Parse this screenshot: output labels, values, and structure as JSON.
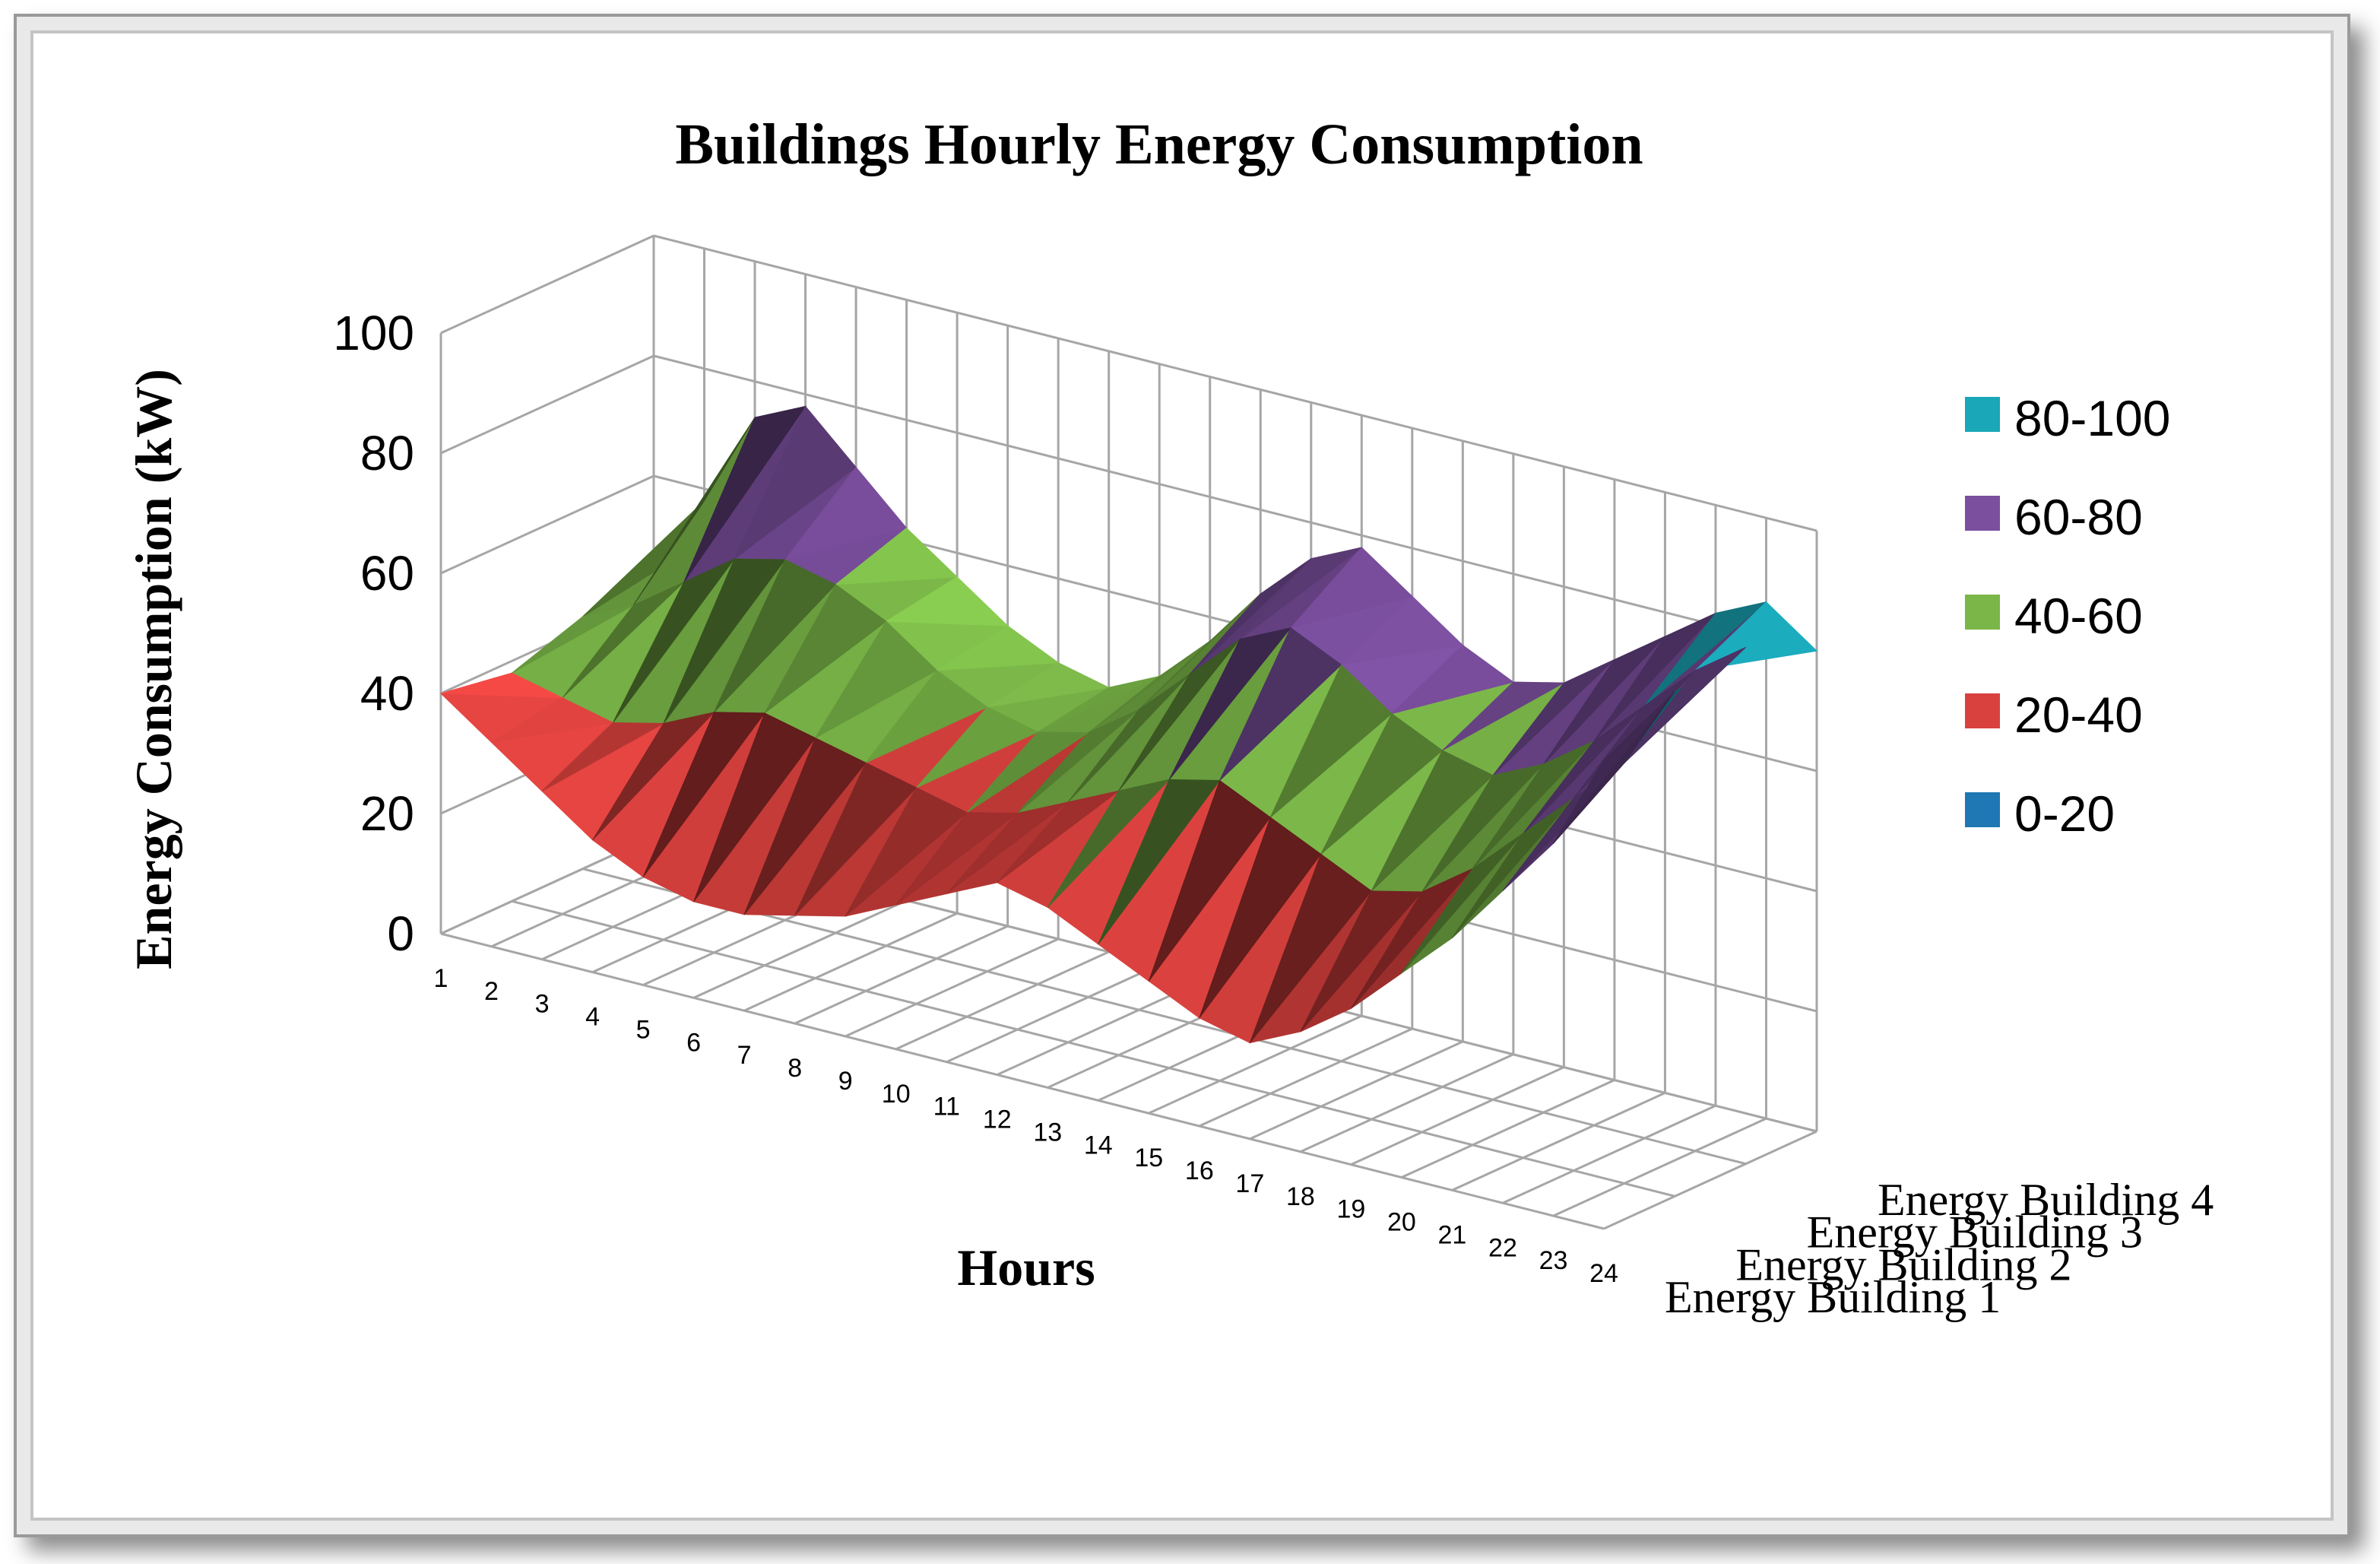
{
  "chart_data": {
    "type": "surface",
    "title": "Buildings Hourly Energy Consumption",
    "xlabel": "Hours",
    "ylabel": "Energy Consumption (kW)",
    "ylim": [
      0,
      100
    ],
    "y_ticks": [
      "0",
      "20",
      "40",
      "60",
      "80",
      "100"
    ],
    "categories": [
      "1",
      "2",
      "3",
      "4",
      "5",
      "6",
      "7",
      "8",
      "9",
      "10",
      "11",
      "12",
      "13",
      "14",
      "15",
      "16",
      "17",
      "18",
      "19",
      "20",
      "21",
      "22",
      "23",
      "24"
    ],
    "depth_categories": [
      "Energy Building 1",
      "Energy Building 2",
      "Energy Building 3",
      "Energy Building 4"
    ],
    "series": [
      {
        "name": "Energy Building 1",
        "values": [
          40,
          34,
          28,
          22,
          18,
          16,
          16,
          18,
          20,
          24,
          28,
          32,
          30,
          26,
          22,
          18,
          16,
          20,
          26,
          34,
          42,
          52,
          62,
          78
        ]
      },
      {
        "name": "Energy Building 2",
        "values": [
          38,
          36,
          34,
          36,
          40,
          42,
          40,
          38,
          36,
          34,
          36,
          40,
          44,
          48,
          50,
          46,
          42,
          38,
          40,
          46,
          54,
          62,
          70,
          84
        ]
      },
      {
        "name": "Energy Building 3",
        "values": [
          42,
          46,
          52,
          58,
          60,
          58,
          54,
          48,
          44,
          42,
          44,
          50,
          58,
          66,
          70,
          66,
          60,
          56,
          54,
          58,
          64,
          72,
          80,
          86
        ]
      },
      {
        "name": "Energy Building 4",
        "values": [
          44,
          58,
          74,
          78,
          70,
          62,
          56,
          50,
          46,
          44,
          48,
          56,
          66,
          74,
          78,
          72,
          66,
          62,
          64,
          70,
          76,
          82,
          86,
          80
        ]
      }
    ],
    "legend": [
      {
        "label": "80-100",
        "color": "#1aa7b8"
      },
      {
        "label": "60-80",
        "color": "#7b4f9e"
      },
      {
        "label": "40-60",
        "color": "#7ab648"
      },
      {
        "label": "20-40",
        "color": "#d9413e"
      },
      {
        "label": "0-20",
        "color": "#1f77b4"
      }
    ],
    "legend_position": "right"
  }
}
